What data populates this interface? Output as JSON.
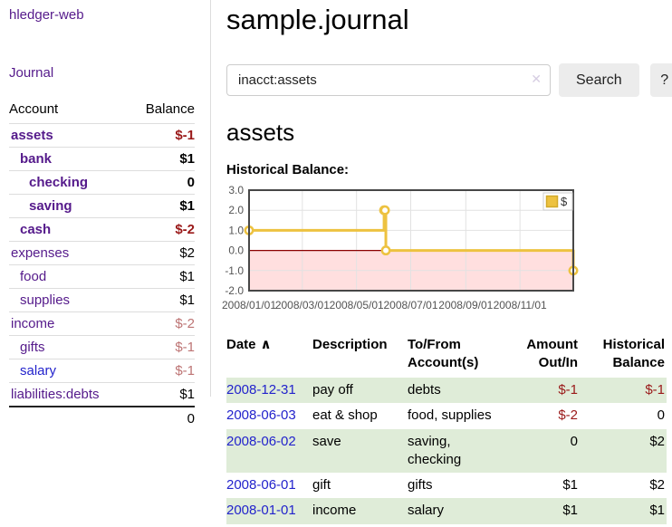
{
  "colors": {
    "purple": "#551a8b",
    "blue": "#2323cc",
    "neg": "#9a1919",
    "rose": "#bd7474",
    "green-row": "#dfecd8",
    "btn-bg": "#ececec",
    "input-border": "#cccccc",
    "clear": "#d6cde2",
    "divider": "#dcdcdc"
  },
  "sidebar": {
    "brand": "hledger-web",
    "journal_link": "Journal",
    "accounts_table": {
      "headers": [
        "Account",
        "Balance"
      ],
      "rows": [
        {
          "account": "assets",
          "balance": "$-1",
          "depth": 1,
          "bold": true,
          "balance_style": "neg"
        },
        {
          "account": "bank",
          "balance": "$1",
          "depth": 2,
          "bold": true,
          "balance_style": ""
        },
        {
          "account": "checking",
          "balance": "0",
          "depth": 3,
          "bold": true,
          "balance_style": ""
        },
        {
          "account": "saving",
          "balance": "$1",
          "depth": 3,
          "bold": true,
          "balance_style": ""
        },
        {
          "account": "cash",
          "balance": "$-2",
          "depth": 2,
          "bold": true,
          "balance_style": "neg"
        },
        {
          "account": "expenses",
          "balance": "$2",
          "depth": 1,
          "bold": false,
          "balance_style": ""
        },
        {
          "account": "food",
          "balance": "$1",
          "depth": 2,
          "bold": false,
          "balance_style": ""
        },
        {
          "account": "supplies",
          "balance": "$1",
          "depth": 2,
          "bold": false,
          "balance_style": ""
        },
        {
          "account": "income",
          "balance": "$-2",
          "depth": 1,
          "bold": false,
          "balance_style": "rose"
        },
        {
          "account": "gifts",
          "balance": "$-1",
          "depth": 2,
          "bold": false,
          "balance_style": "rose"
        },
        {
          "account": "salary",
          "balance": "$-1",
          "depth": 2,
          "bold": false,
          "balance_style": "rose",
          "link_color": "blue"
        },
        {
          "account": "liabilities:debts",
          "balance": "$1",
          "depth": 1,
          "bold": false,
          "balance_style": ""
        }
      ],
      "total": "0"
    }
  },
  "header": {
    "title": "sample.journal"
  },
  "search": {
    "value": "inacct:assets",
    "clear_icon": "✕",
    "search_label": "Search",
    "help_label": "?"
  },
  "register": {
    "heading": "assets",
    "chart_label": "Historical Balance:"
  },
  "chart_data": {
    "type": "line",
    "title": "Historical Balance:",
    "step": true,
    "grid": true,
    "legend_position": "top-right",
    "negative_region_shaded": true,
    "ylim": [
      -2,
      3
    ],
    "x_range": [
      "2008-01-01",
      "2008-12-31"
    ],
    "y_ticks": [
      {
        "value": 3,
        "label": "3.0"
      },
      {
        "value": 2,
        "label": "2.0"
      },
      {
        "value": 1,
        "label": "1.0"
      },
      {
        "value": 0,
        "label": "0.0"
      },
      {
        "value": -1,
        "label": "-1.0"
      },
      {
        "value": -2,
        "label": "-2.0"
      }
    ],
    "x_ticks": [
      {
        "date": "2008-01-01",
        "label": "2008/01/01"
      },
      {
        "date": "2008-03-01",
        "label": "2008/03/01"
      },
      {
        "date": "2008-05-01",
        "label": "2008/05/01"
      },
      {
        "date": "2008-07-01",
        "label": "2008/07/01"
      },
      {
        "date": "2008-09-01",
        "label": "2008/09/01"
      },
      {
        "date": "2008-11-01",
        "label": "2008/11/01"
      }
    ],
    "series": [
      {
        "name": "$",
        "color": "#edc240",
        "points": [
          [
            "2008-01-01",
            1
          ],
          [
            "2008-06-01",
            2
          ],
          [
            "2008-06-02",
            2
          ],
          [
            "2008-06-03",
            0
          ],
          [
            "2008-12-31",
            -1
          ]
        ]
      }
    ],
    "style": {
      "line_color": "#edc240",
      "legend_swatch_border": "#d2a929",
      "negative_fill": "#ffdfdf",
      "zero_line": "#8b0000",
      "plot_border": "#474747",
      "grid_color": "#e2e2e2",
      "tick_color": "#545454"
    }
  },
  "transactions": {
    "headers": [
      {
        "label": "Date",
        "sort_icon": "∧",
        "align": "left"
      },
      {
        "label": "Description",
        "align": "left"
      },
      {
        "label": "To/From\nAccount(s)",
        "align": "left"
      },
      {
        "label": "Amount\nOut/In",
        "align": "right"
      },
      {
        "label": "Historical\nBalance",
        "align": "right"
      }
    ],
    "rows": [
      {
        "date": "2008-12-31",
        "description": "pay off",
        "accounts": "debts",
        "amount": "$-1",
        "balance": "$-1",
        "green": true
      },
      {
        "date": "2008-06-03",
        "description": "eat & shop",
        "accounts": "food, supplies",
        "amount": "$-2",
        "balance": "0",
        "green": false
      },
      {
        "date": "2008-06-02",
        "description": "save",
        "accounts": "saving,\nchecking",
        "amount": "0",
        "balance": "$2",
        "green": true
      },
      {
        "date": "2008-06-01",
        "description": "gift",
        "accounts": "gifts",
        "amount": "$1",
        "balance": "$2",
        "green": false
      },
      {
        "date": "2008-01-01",
        "description": "income",
        "accounts": "salary",
        "amount": "$1",
        "balance": "$1",
        "green": true
      }
    ]
  }
}
